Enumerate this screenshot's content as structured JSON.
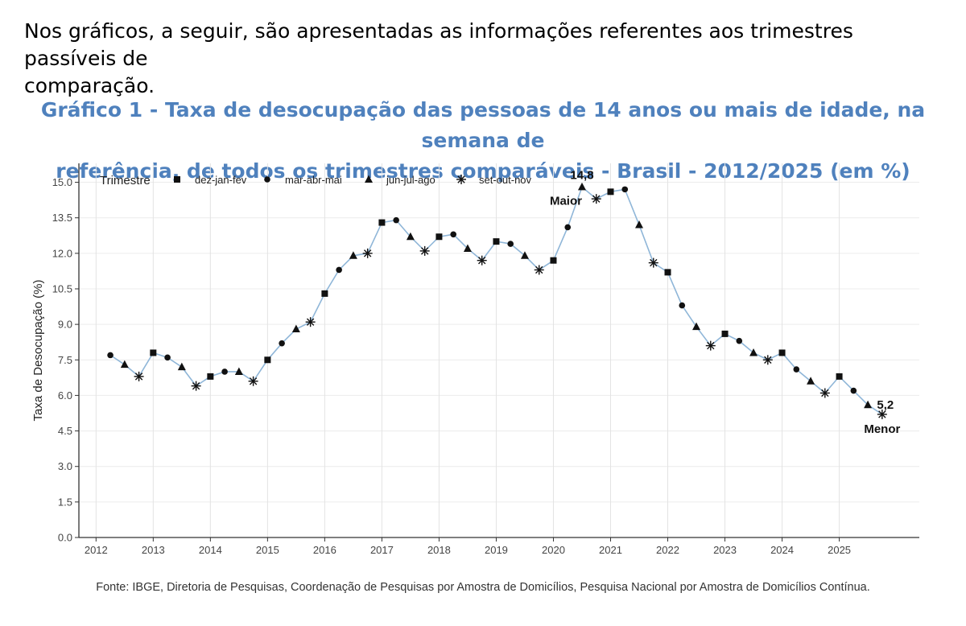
{
  "intro": {
    "line1": "Nos gráficos, a seguir, são apresentadas as informações referentes aos trimestres passíveis de",
    "line2": "comparação."
  },
  "chart_title": {
    "line1": "Gráfico 1 - Taxa de desocupação das pessoas de 14 anos ou mais de idade, na semana de",
    "line2": "referência, de todos os trimestres comparáveis - Brasil - 2012/2025 (em %)"
  },
  "source": "Fonte: IBGE, Diretoria de Pesquisas, Coordenação de Pesquisas por Amostra de Domicílios, Pesquisa Nacional por Amostra de Domicílios Contínua.",
  "colors": {
    "title": "#4f81bd",
    "line": "#8fb6d8",
    "marker": "#111111"
  },
  "chart_data": {
    "type": "line",
    "ylabel": "Taxa de Desocupação (%)",
    "xlabel": "",
    "ylim": [
      0,
      15.8
    ],
    "yticks": [
      0.0,
      1.5,
      3.0,
      4.5,
      6.0,
      7.5,
      9.0,
      10.5,
      12.0,
      13.5,
      15.0
    ],
    "xlim": [
      2011.7,
      2026.4
    ],
    "xticks": [
      2012,
      2013,
      2014,
      2015,
      2016,
      2017,
      2018,
      2019,
      2020,
      2021,
      2022,
      2023,
      2024,
      2025
    ],
    "legend": {
      "title": "Trimestre",
      "placement": "top-left",
      "entries": [
        {
          "label": "dez-jan-fev",
          "shape": "square"
        },
        {
          "label": "mar-abr-mai",
          "shape": "circle"
        },
        {
          "label": "jun-jul-ago",
          "shape": "triangle"
        },
        {
          "label": "set-out-nov",
          "shape": "asterisk"
        }
      ]
    },
    "series": [
      {
        "name": "Taxa de desocupação",
        "points": [
          {
            "x": 2012.25,
            "y": 7.7,
            "trimestre": "mar-abr-mai"
          },
          {
            "x": 2012.5,
            "y": 7.3,
            "trimestre": "jun-jul-ago"
          },
          {
            "x": 2012.75,
            "y": 6.8,
            "trimestre": "set-out-nov"
          },
          {
            "x": 2013.0,
            "y": 7.8,
            "trimestre": "dez-jan-fev"
          },
          {
            "x": 2013.25,
            "y": 7.6,
            "trimestre": "mar-abr-mai"
          },
          {
            "x": 2013.5,
            "y": 7.2,
            "trimestre": "jun-jul-ago"
          },
          {
            "x": 2013.75,
            "y": 6.4,
            "trimestre": "set-out-nov"
          },
          {
            "x": 2014.0,
            "y": 6.8,
            "trimestre": "dez-jan-fev"
          },
          {
            "x": 2014.25,
            "y": 7.0,
            "trimestre": "mar-abr-mai"
          },
          {
            "x": 2014.5,
            "y": 7.0,
            "trimestre": "jun-jul-ago"
          },
          {
            "x": 2014.75,
            "y": 6.6,
            "trimestre": "set-out-nov"
          },
          {
            "x": 2015.0,
            "y": 7.5,
            "trimestre": "dez-jan-fev"
          },
          {
            "x": 2015.25,
            "y": 8.2,
            "trimestre": "mar-abr-mai"
          },
          {
            "x": 2015.5,
            "y": 8.8,
            "trimestre": "jun-jul-ago"
          },
          {
            "x": 2015.75,
            "y": 9.1,
            "trimestre": "set-out-nov"
          },
          {
            "x": 2016.0,
            "y": 10.3,
            "trimestre": "dez-jan-fev"
          },
          {
            "x": 2016.25,
            "y": 11.3,
            "trimestre": "mar-abr-mai"
          },
          {
            "x": 2016.5,
            "y": 11.9,
            "trimestre": "jun-jul-ago"
          },
          {
            "x": 2016.75,
            "y": 12.0,
            "trimestre": "set-out-nov"
          },
          {
            "x": 2017.0,
            "y": 13.3,
            "trimestre": "dez-jan-fev"
          },
          {
            "x": 2017.25,
            "y": 13.4,
            "trimestre": "mar-abr-mai"
          },
          {
            "x": 2017.5,
            "y": 12.7,
            "trimestre": "jun-jul-ago"
          },
          {
            "x": 2017.75,
            "y": 12.1,
            "trimestre": "set-out-nov"
          },
          {
            "x": 2018.0,
            "y": 12.7,
            "trimestre": "dez-jan-fev"
          },
          {
            "x": 2018.25,
            "y": 12.8,
            "trimestre": "mar-abr-mai"
          },
          {
            "x": 2018.5,
            "y": 12.2,
            "trimestre": "jun-jul-ago"
          },
          {
            "x": 2018.75,
            "y": 11.7,
            "trimestre": "set-out-nov"
          },
          {
            "x": 2019.0,
            "y": 12.5,
            "trimestre": "dez-jan-fev"
          },
          {
            "x": 2019.25,
            "y": 12.4,
            "trimestre": "mar-abr-mai"
          },
          {
            "x": 2019.5,
            "y": 11.9,
            "trimestre": "jun-jul-ago"
          },
          {
            "x": 2019.75,
            "y": 11.3,
            "trimestre": "set-out-nov"
          },
          {
            "x": 2020.0,
            "y": 11.7,
            "trimestre": "dez-jan-fev"
          },
          {
            "x": 2020.25,
            "y": 13.1,
            "trimestre": "mar-abr-mai"
          },
          {
            "x": 2020.5,
            "y": 14.8,
            "trimestre": "jun-jul-ago"
          },
          {
            "x": 2020.75,
            "y": 14.3,
            "trimestre": "set-out-nov"
          },
          {
            "x": 2021.0,
            "y": 14.6,
            "trimestre": "dez-jan-fev"
          },
          {
            "x": 2021.25,
            "y": 14.7,
            "trimestre": "mar-abr-mai"
          },
          {
            "x": 2021.5,
            "y": 13.2,
            "trimestre": "jun-jul-ago"
          },
          {
            "x": 2021.75,
            "y": 11.6,
            "trimestre": "set-out-nov"
          },
          {
            "x": 2022.0,
            "y": 11.2,
            "trimestre": "dez-jan-fev"
          },
          {
            "x": 2022.25,
            "y": 9.8,
            "trimestre": "mar-abr-mai"
          },
          {
            "x": 2022.5,
            "y": 8.9,
            "trimestre": "jun-jul-ago"
          },
          {
            "x": 2022.75,
            "y": 8.1,
            "trimestre": "set-out-nov"
          },
          {
            "x": 2023.0,
            "y": 8.6,
            "trimestre": "dez-jan-fev"
          },
          {
            "x": 2023.25,
            "y": 8.3,
            "trimestre": "mar-abr-mai"
          },
          {
            "x": 2023.5,
            "y": 7.8,
            "trimestre": "jun-jul-ago"
          },
          {
            "x": 2023.75,
            "y": 7.5,
            "trimestre": "set-out-nov"
          },
          {
            "x": 2024.0,
            "y": 7.8,
            "trimestre": "dez-jan-fev"
          },
          {
            "x": 2024.25,
            "y": 7.1,
            "trimestre": "mar-abr-mai"
          },
          {
            "x": 2024.5,
            "y": 6.6,
            "trimestre": "jun-jul-ago"
          },
          {
            "x": 2024.75,
            "y": 6.1,
            "trimestre": "set-out-nov"
          },
          {
            "x": 2025.0,
            "y": 6.8,
            "trimestre": "dez-jan-fev"
          },
          {
            "x": 2025.25,
            "y": 6.2,
            "trimestre": "mar-abr-mai"
          },
          {
            "x": 2025.5,
            "y": 5.6,
            "trimestre": "jun-jul-ago"
          },
          {
            "x": 2025.75,
            "y": 5.2,
            "trimestre": "set-out-nov"
          }
        ]
      }
    ],
    "annotations": {
      "max_value": "14,8",
      "max_label": "Maior",
      "min_value": "5,2",
      "min_label": "Menor"
    }
  }
}
